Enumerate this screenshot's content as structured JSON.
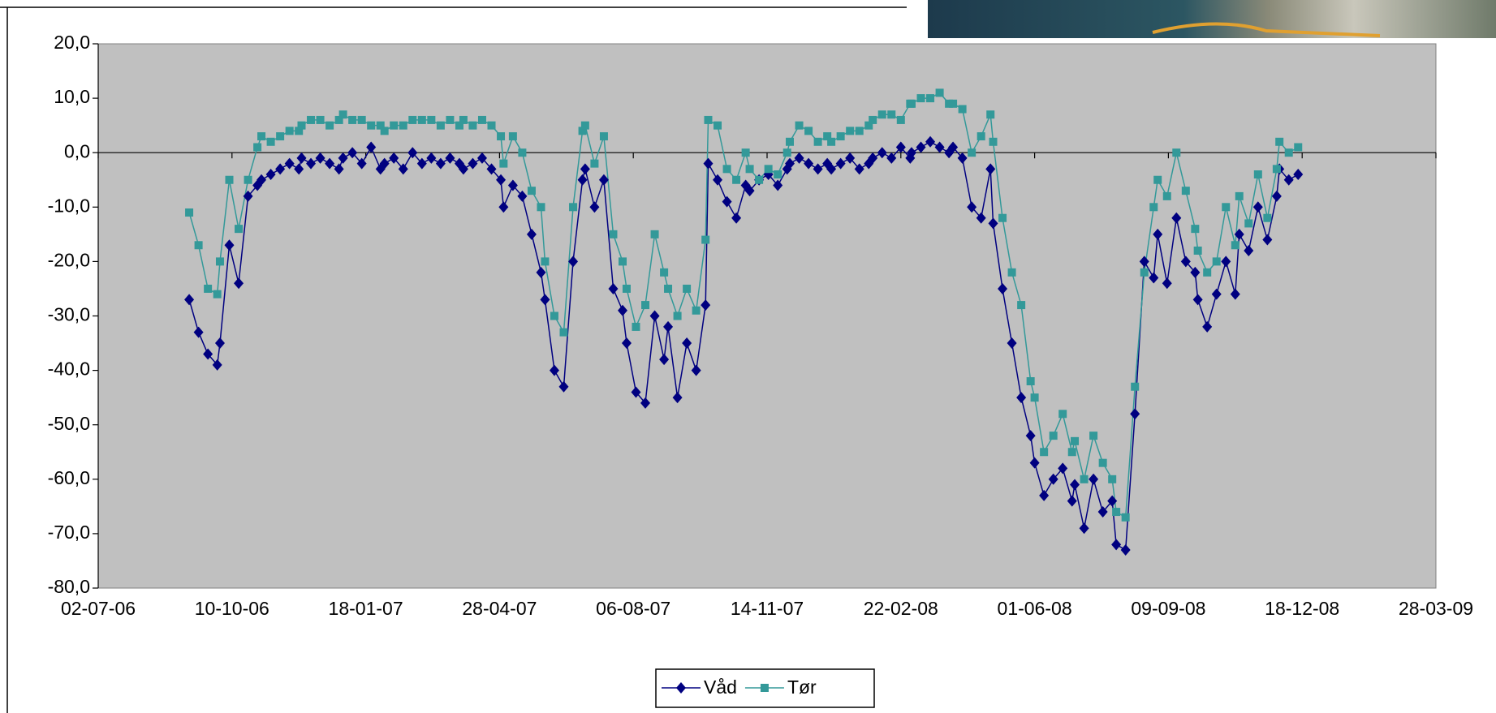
{
  "chart_data": {
    "type": "line",
    "x": [
      "08-09-06",
      "15-09-06",
      "22-09-06",
      "29-09-06",
      "01-10-06",
      "08-10-06",
      "15-10-06",
      "22-10-06",
      "29-10-06",
      "01-11-06",
      "08-11-06",
      "15-11-06",
      "22-11-06",
      "29-11-06",
      "01-12-06",
      "08-12-06",
      "15-12-06",
      "22-12-06",
      "29-12-06",
      "01-01-07",
      "08-01-07",
      "15-01-07",
      "22-01-07",
      "29-01-07",
      "01-02-07",
      "08-02-07",
      "15-02-07",
      "22-02-07",
      "01-03-07",
      "08-03-07",
      "15-03-07",
      "22-03-07",
      "29-03-07",
      "01-04-07",
      "08-04-07",
      "15-04-07",
      "22-04-07",
      "29-04-07",
      "01-05-07",
      "08-05-07",
      "15-05-07",
      "22-05-07",
      "29-05-07",
      "01-06-07",
      "08-06-07",
      "15-06-07",
      "22-06-07",
      "29-06-07",
      "01-07-07",
      "08-07-07",
      "15-07-07",
      "22-07-07",
      "29-07-07",
      "01-08-07",
      "08-08-07",
      "15-08-07",
      "22-08-07",
      "29-08-07",
      "01-09-07",
      "08-09-07",
      "15-09-07",
      "22-09-07",
      "29-09-07",
      "01-10-07",
      "08-10-07",
      "15-10-07",
      "22-10-07",
      "29-10-07",
      "01-11-07",
      "08-11-07",
      "15-11-07",
      "22-11-07",
      "29-11-07",
      "01-12-07",
      "08-12-07",
      "15-12-07",
      "22-12-07",
      "29-12-07",
      "01-01-08",
      "08-01-08",
      "15-01-08",
      "22-01-08",
      "29-01-08",
      "01-02-08",
      "08-02-08",
      "15-02-08",
      "22-02-08",
      "29-02-08",
      "01-03-08",
      "08-03-08",
      "15-03-08",
      "22-03-08",
      "29-03-08",
      "01-04-08",
      "08-04-08",
      "15-04-08",
      "22-04-08",
      "29-04-08",
      "01-05-08",
      "08-05-08",
      "15-05-08",
      "22-05-08",
      "29-05-08",
      "01-06-08",
      "08-06-08",
      "15-06-08",
      "22-06-08",
      "29-06-08",
      "01-07-08",
      "08-07-08",
      "15-07-08",
      "22-07-08",
      "29-07-08",
      "01-08-08",
      "08-08-08",
      "15-08-08",
      "22-08-08",
      "29-08-08",
      "01-09-08",
      "08-09-08",
      "15-09-08",
      "22-09-08",
      "29-09-08",
      "01-10-08",
      "08-10-08",
      "15-10-08",
      "22-10-08",
      "29-10-08",
      "01-11-08",
      "08-11-08",
      "15-11-08",
      "22-11-08",
      "29-11-08",
      "01-12-08",
      "08-12-08",
      "15-12-08"
    ],
    "series": [
      {
        "name": "Våd",
        "color": "#000080",
        "marker": "diamond",
        "values": [
          -27,
          -33,
          -37,
          -39,
          -35,
          -17,
          -24,
          -8,
          -6,
          -5,
          -4,
          -3,
          -2,
          -3,
          -1,
          -2,
          -1,
          -2,
          -3,
          -1,
          0,
          -2,
          1,
          -3,
          -2,
          -1,
          -3,
          0,
          -2,
          -1,
          -2,
          -1,
          -2,
          -3,
          -2,
          -1,
          -3,
          -5,
          -10,
          -6,
          -8,
          -15,
          -22,
          -27,
          -40,
          -43,
          -20,
          -5,
          -3,
          -10,
          -5,
          -25,
          -29,
          -35,
          -44,
          -46,
          -30,
          -38,
          -32,
          -45,
          -35,
          -40,
          -28,
          -2,
          -5,
          -9,
          -12,
          -6,
          -7,
          -5,
          -4,
          -6,
          -3,
          -2,
          -1,
          -2,
          -3,
          -2,
          -3,
          -2,
          -1,
          -3,
          -2,
          -1,
          0,
          -1,
          1,
          -1,
          0,
          1,
          2,
          1,
          0,
          1,
          -1,
          -10,
          -12,
          -3,
          -13,
          -25,
          -35,
          -45,
          -52,
          -57,
          -63,
          -60,
          -58,
          -64,
          -61,
          -69,
          -60,
          -66,
          -64,
          -72,
          -73,
          -48,
          -20,
          -23,
          -15,
          -24,
          -12,
          -20,
          -22,
          -27,
          -32,
          -26,
          -20,
          -26,
          -15,
          -18,
          -10,
          -16,
          -8,
          -3,
          -5,
          -4
        ]
      },
      {
        "name": "Tør",
        "color": "#339999",
        "marker": "square",
        "values": [
          -11,
          -17,
          -25,
          -26,
          -20,
          -5,
          -14,
          -5,
          1,
          3,
          2,
          3,
          4,
          4,
          5,
          6,
          6,
          5,
          6,
          7,
          6,
          6,
          5,
          5,
          4,
          5,
          5,
          6,
          6,
          6,
          5,
          6,
          5,
          6,
          5,
          6,
          5,
          3,
          -2,
          3,
          0,
          -7,
          -10,
          -20,
          -30,
          -33,
          -10,
          4,
          5,
          -2,
          3,
          -15,
          -20,
          -25,
          -32,
          -28,
          -15,
          -22,
          -25,
          -30,
          -25,
          -29,
          -16,
          6,
          5,
          -3,
          -5,
          0,
          -3,
          -5,
          -3,
          -4,
          0,
          2,
          5,
          4,
          2,
          3,
          2,
          3,
          4,
          4,
          5,
          6,
          7,
          7,
          6,
          9,
          9,
          10,
          10,
          11,
          9,
          9,
          8,
          0,
          3,
          7,
          2,
          -12,
          -22,
          -28,
          -42,
          -45,
          -55,
          -52,
          -48,
          -55,
          -53,
          -60,
          -52,
          -57,
          -60,
          -66,
          -67,
          -43,
          -22,
          -10,
          -5,
          -8,
          0,
          -7,
          -14,
          -18,
          -22,
          -20,
          -10,
          -17,
          -8,
          -13,
          -4,
          -12,
          -3,
          2,
          0,
          1
        ]
      }
    ],
    "xlim": [
      "02-07-06",
      "28-03-09"
    ],
    "xticks": [
      "02-07-06",
      "10-10-06",
      "18-01-07",
      "28-04-07",
      "06-08-07",
      "14-11-07",
      "22-02-08",
      "01-06-08",
      "09-09-08",
      "18-12-08",
      "28-03-09"
    ],
    "ylim": [
      -80,
      20
    ],
    "yticks": [
      {
        "value": -80,
        "label": "-80,0"
      },
      {
        "value": -70,
        "label": "-70,0"
      },
      {
        "value": -60,
        "label": "-60,0"
      },
      {
        "value": -50,
        "label": "-50,0"
      },
      {
        "value": -40,
        "label": "-40,0"
      },
      {
        "value": -30,
        "label": "-30,0"
      },
      {
        "value": -20,
        "label": "-20,0"
      },
      {
        "value": -10,
        "label": "-10,0"
      },
      {
        "value": 0,
        "label": "0,0"
      },
      {
        "value": 10,
        "label": "10,0"
      },
      {
        "value": 20,
        "label": "20,0"
      }
    ],
    "legend": "bottom"
  }
}
